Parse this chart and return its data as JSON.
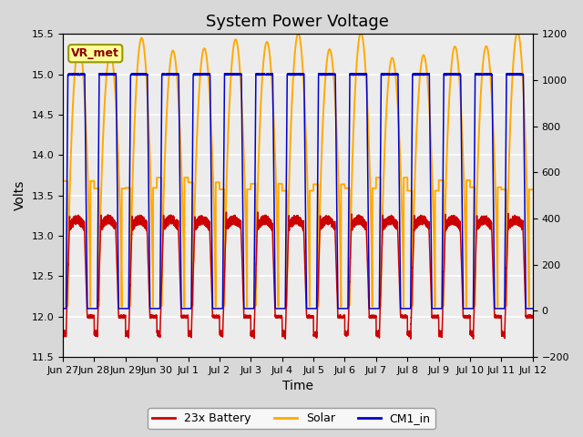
{
  "title": "System Power Voltage",
  "xlabel": "Time",
  "ylabel": "Volts",
  "ylim": [
    11.5,
    15.5
  ],
  "ylim2": [
    -200,
    1200
  ],
  "yticks_left": [
    11.5,
    12.0,
    12.5,
    13.0,
    13.5,
    14.0,
    14.5,
    15.0,
    15.5
  ],
  "yticks_right": [
    -200,
    0,
    200,
    400,
    600,
    800,
    1000,
    1200
  ],
  "fig_bg_color": "#d8d8d8",
  "plot_bg_color": "#ececec",
  "grid_color": "#ffffff",
  "battery_color": "#cc0000",
  "solar_color": "#ffaa00",
  "cm1_color": "#0000cc",
  "legend_labels": [
    "23x Battery",
    "Solar",
    "CM1_in"
  ],
  "annotation_text": "VR_met",
  "annotation_box_color": "#ffff99",
  "annotation_border_color": "#999900",
  "title_fontsize": 13,
  "label_fontsize": 10,
  "tick_fontsize": 8,
  "x_tick_labels": [
    "Jun 27",
    "Jun 28",
    "Jun 29",
    "Jun 30",
    "Jul 1",
    "Jul 2",
    "Jul 3",
    "Jul 4",
    "Jul 5",
    "Jul 6",
    "Jul 7",
    "Jul 8",
    "Jul 9",
    "Jul 10",
    "Jul 11",
    "Jul 12"
  ],
  "n_days": 15
}
